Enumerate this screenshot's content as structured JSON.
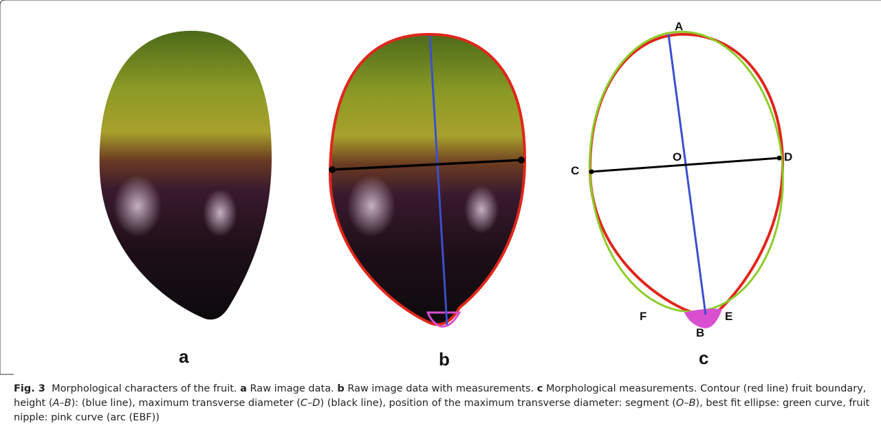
{
  "panels": [
    "a",
    "b",
    "c"
  ],
  "points": {
    "A": "A",
    "B": "B",
    "C": "C",
    "D": "D",
    "O": "O",
    "E": "E",
    "F": "F"
  },
  "caption": [
    "Fig. 3",
    "Morphological characters of the fruit.",
    "a",
    "Raw image data.",
    "b",
    "Raw image data with measurements.",
    "c",
    "Morphological measurements. Contour (red line) fruit boundary, height (",
    "A–B",
    "): (blue line), maximum transverse diameter (",
    "C–D",
    ") (black line), position of the maximum transverse diameter: segment (",
    "O–B",
    "), best fit ellipse: green curve, fruit nipple: pink curve (arc (EBF))"
  ]
}
